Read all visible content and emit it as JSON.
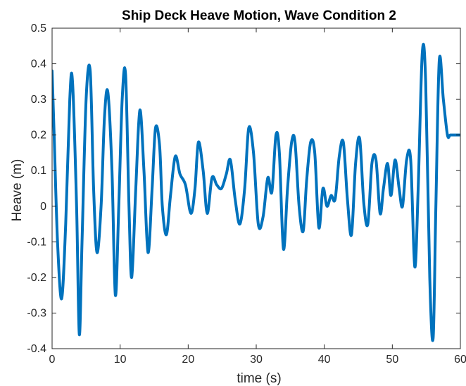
{
  "chart_data": {
    "type": "line",
    "title": "Ship Deck Heave Motion, Wave Condition 2",
    "xlabel": "time (s)",
    "ylabel": "Heave (m)",
    "xlim": [
      0,
      60
    ],
    "ylim": [
      -0.4,
      0.5
    ],
    "xticks": [
      0,
      10,
      20,
      30,
      40,
      50,
      60
    ],
    "yticks": [
      -0.4,
      -0.3,
      -0.2,
      -0.1,
      0,
      0.1,
      0.2,
      0.3,
      0.4,
      0.5
    ],
    "xtick_labels": [
      "0",
      "10",
      "20",
      "30",
      "40",
      "50",
      "60"
    ],
    "ytick_labels": [
      "-0.4",
      "-0.3",
      "-0.2",
      "-0.1",
      "0",
      "0.1",
      "0.2",
      "0.3",
      "0.4",
      "0.5"
    ],
    "grid": false,
    "series": [
      {
        "color": "#0072BD",
        "x": [
          0,
          0.3,
          0.8,
          1.4,
          2.0,
          2.6,
          3.0,
          3.6,
          4.0,
          4.4,
          5.0,
          5.6,
          6.1,
          6.6,
          7.2,
          7.7,
          8.2,
          8.8,
          9.3,
          9.8,
          10.3,
          10.8,
          11.3,
          11.7,
          12.3,
          12.9,
          13.5,
          14.1,
          14.7,
          15.2,
          15.8,
          16.2,
          16.8,
          17.4,
          18.1,
          18.8,
          19.6,
          20.4,
          21.0,
          21.5,
          22.2,
          22.8,
          23.5,
          24.2,
          24.9,
          25.6,
          26.2,
          26.9,
          27.6,
          28.3,
          28.9,
          29.6,
          30.3,
          31.0,
          31.7,
          32.3,
          32.9,
          33.4,
          34.0,
          34.6,
          35.2,
          35.7,
          36.3,
          36.9,
          37.4,
          38.0,
          38.6,
          39.2,
          39.8,
          40.4,
          41.0,
          41.6,
          42.2,
          42.8,
          43.4,
          44.0,
          44.6,
          45.2,
          45.8,
          46.4,
          47.0,
          47.6,
          48.2,
          48.7,
          49.3,
          49.8,
          50.4,
          51.0,
          51.5,
          52.1,
          52.7,
          53.3,
          53.8,
          54.4,
          54.9,
          55.5,
          56.0,
          56.4,
          56.9,
          57.5,
          58.1,
          58.5,
          59.0,
          59.5,
          60.0
        ],
        "y": [
          0.38,
          0.2,
          -0.1,
          -0.26,
          -0.05,
          0.3,
          0.35,
          0.0,
          -0.36,
          -0.1,
          0.3,
          0.38,
          0.05,
          -0.13,
          0.0,
          0.25,
          0.32,
          0.1,
          -0.25,
          0.0,
          0.3,
          0.37,
          0.0,
          -0.2,
          0.05,
          0.27,
          0.1,
          -0.13,
          0.05,
          0.22,
          0.17,
          0.0,
          -0.08,
          0.03,
          0.14,
          0.09,
          0.06,
          -0.02,
          0.05,
          0.18,
          0.1,
          -0.02,
          0.08,
          0.06,
          0.05,
          0.09,
          0.13,
          0.02,
          -0.05,
          0.05,
          0.22,
          0.15,
          -0.05,
          -0.03,
          0.08,
          0.04,
          0.2,
          0.15,
          -0.12,
          0.05,
          0.18,
          0.18,
          0.0,
          -0.07,
          0.07,
          0.18,
          0.15,
          -0.06,
          0.05,
          0.0,
          0.03,
          0.02,
          0.14,
          0.18,
          0.02,
          -0.08,
          0.12,
          0.19,
          0.01,
          -0.05,
          0.12,
          0.13,
          -0.02,
          0.05,
          0.12,
          0.03,
          0.13,
          0.05,
          0.0,
          0.13,
          0.13,
          -0.17,
          0.05,
          0.43,
          0.35,
          -0.2,
          -0.37,
          0.0,
          0.41,
          0.3,
          0.2,
          0.2,
          0.2,
          0.2,
          0.2
        ]
      }
    ]
  }
}
